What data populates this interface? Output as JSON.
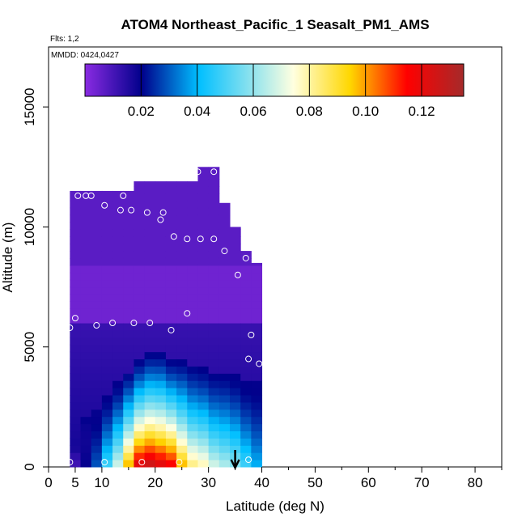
{
  "chart_data": {
    "type": "heatmap",
    "title": "ATOM4 Northeast_Pacific_1 Seasalt_PM1_AMS",
    "notes": {
      "flights": "Flts: 1,2",
      "dates": "MMDD: 0424,0427"
    },
    "xlabel": "Latitude (deg N)",
    "ylabel": "Altitude (m)",
    "xlim": [
      0,
      85
    ],
    "ylim": [
      0,
      17500
    ],
    "x_ticks": [
      0,
      5,
      10,
      20,
      30,
      40,
      50,
      60,
      70,
      80
    ],
    "x_tick_labels": [
      "0",
      "5",
      "10",
      "20",
      "30",
      "40",
      "50",
      "60",
      "70",
      "80"
    ],
    "y_ticks": [
      0,
      5000,
      10000,
      15000
    ],
    "y_tick_labels": [
      "0",
      "5000",
      "10000",
      "15000"
    ],
    "colorbar": {
      "range": [
        0,
        0.135
      ],
      "ticks": [
        0.02,
        0.04,
        0.06,
        0.08,
        0.1,
        0.12
      ],
      "tick_labels": [
        "0.02",
        "0.04",
        "0.06",
        "0.08",
        "0.10",
        "0.12"
      ],
      "colors": [
        "#8a2be2",
        "#00008b",
        "#00bfff",
        "#ffffe0",
        "#ffd700",
        "#ff0000",
        "#a52a2a"
      ]
    },
    "arrow_latitude": 35,
    "latitude_bins_lower": [
      4,
      6,
      8,
      10,
      12,
      14,
      16,
      18,
      20,
      22,
      24,
      26,
      28,
      30,
      32,
      34,
      36,
      38
    ],
    "latitude_bins_upper": [
      6,
      8,
      10,
      12,
      14,
      16,
      18,
      20,
      22,
      24,
      26,
      28,
      30,
      32,
      34,
      36,
      38,
      40
    ],
    "altitude_top": [
      11500,
      11500,
      11500,
      11500,
      11500,
      11500,
      11900,
      11900,
      11900,
      11900,
      11900,
      11900,
      12500,
      12500,
      11000,
      10000,
      9000,
      8500
    ],
    "surface_profile": [
      0.01,
      0.02,
      0.03,
      0.05,
      0.07,
      0.1,
      0.125,
      0.13,
      0.125,
      0.12,
      0.1,
      0.085,
      0.08,
      0.07,
      0.065,
      0.06,
      0.05,
      0.04
    ],
    "boundary_layer_top": [
      1000,
      2000,
      2500,
      3000,
      3500,
      4000,
      4500,
      4800,
      4800,
      4500,
      4500,
      4300,
      4200,
      4000,
      4000,
      3800,
      3500,
      3500
    ],
    "upper_background": 0.003,
    "sample_points": [
      {
        "lat": 5.5,
        "alt": 11300
      },
      {
        "lat": 7,
        "alt": 11300
      },
      {
        "lat": 8,
        "alt": 11300
      },
      {
        "lat": 10.5,
        "alt": 10900
      },
      {
        "lat": 13.5,
        "alt": 10700
      },
      {
        "lat": 15.5,
        "alt": 10700
      },
      {
        "lat": 18.5,
        "alt": 10600
      },
      {
        "lat": 21.5,
        "alt": 10600
      },
      {
        "lat": 21,
        "alt": 10300
      },
      {
        "lat": 14,
        "alt": 11300
      },
      {
        "lat": 28,
        "alt": 12300
      },
      {
        "lat": 31,
        "alt": 12300
      },
      {
        "lat": 23.5,
        "alt": 9600
      },
      {
        "lat": 26,
        "alt": 9500
      },
      {
        "lat": 28.5,
        "alt": 9500
      },
      {
        "lat": 31,
        "alt": 9500
      },
      {
        "lat": 33,
        "alt": 9000
      },
      {
        "lat": 37,
        "alt": 8700
      },
      {
        "lat": 35.5,
        "alt": 8000
      },
      {
        "lat": 38,
        "alt": 5500
      },
      {
        "lat": 26,
        "alt": 6400
      },
      {
        "lat": 4,
        "alt": 5800
      },
      {
        "lat": 5,
        "alt": 6200
      },
      {
        "lat": 9,
        "alt": 5900
      },
      {
        "lat": 12,
        "alt": 6000
      },
      {
        "lat": 16,
        "alt": 6000
      },
      {
        "lat": 19,
        "alt": 6000
      },
      {
        "lat": 23,
        "alt": 5700
      },
      {
        "lat": 37.5,
        "alt": 4500
      },
      {
        "lat": 39.5,
        "alt": 4300
      },
      {
        "lat": 4,
        "alt": 200
      },
      {
        "lat": 10.5,
        "alt": 200
      },
      {
        "lat": 17.5,
        "alt": 200
      },
      {
        "lat": 24.5,
        "alt": 200
      },
      {
        "lat": 37.5,
        "alt": 300
      }
    ]
  }
}
